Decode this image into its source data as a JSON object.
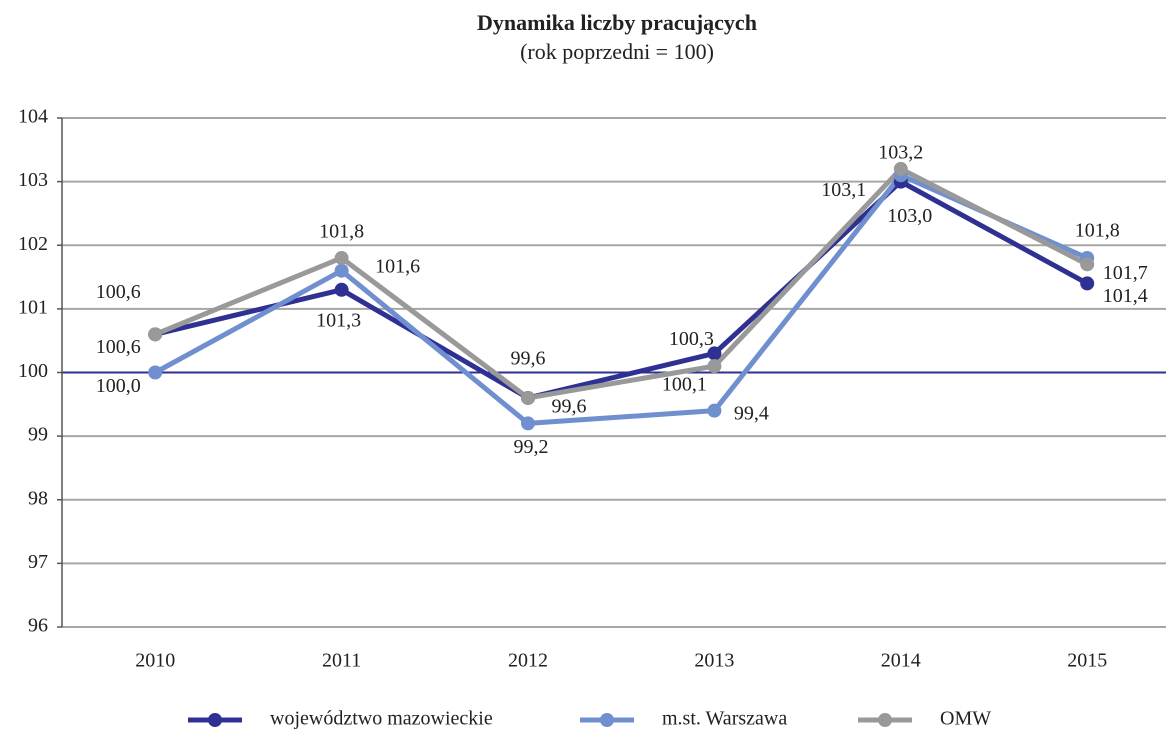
{
  "chart_data": {
    "type": "line",
    "title": "Dynamika liczby pracujących",
    "subtitle": "(rok poprzedni = 100)",
    "categories": [
      "2010",
      "2011",
      "2012",
      "2013",
      "2014",
      "2015"
    ],
    "series": [
      {
        "name": "województwo mazowieckie",
        "color": "#2e3192",
        "values": [
          100.6,
          101.3,
          99.6,
          100.3,
          103.0,
          101.4
        ],
        "value_labels": [
          "100,6",
          "101,3",
          "99,6",
          "100,3",
          "103,0",
          "101,4"
        ]
      },
      {
        "name": "m.st. Warszawa",
        "color": "#6f8fce",
        "values": [
          100.0,
          101.6,
          99.2,
          99.4,
          103.1,
          101.8
        ],
        "value_labels": [
          "100,0",
          "101,6",
          "99,2",
          "99,4",
          "103,1",
          "101,8"
        ]
      },
      {
        "name": "OMW",
        "color": "#999999",
        "values": [
          100.6,
          101.8,
          99.6,
          100.1,
          103.2,
          101.7
        ],
        "value_labels": [
          "100,6",
          "101,8",
          "99,6",
          "100,1",
          "103,2",
          "101,7"
        ]
      }
    ],
    "ylim": [
      96,
      104
    ],
    "yticks": [
      96,
      97,
      98,
      99,
      100,
      101,
      102,
      103,
      104
    ],
    "grid": true,
    "baseline": 100,
    "legend": "bottom"
  }
}
